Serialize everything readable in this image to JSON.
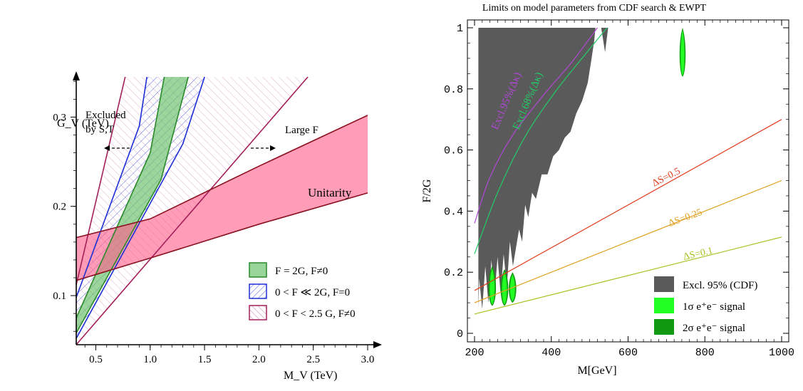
{
  "chart_data": [
    {
      "type": "area",
      "xlabel": "M_V (TeV)",
      "ylabel": "G_V (TeV)",
      "xlim": [
        0.32,
        3.0
      ],
      "ylim": [
        0.045,
        0.345
      ],
      "xticks": [
        "0.5",
        "1.0",
        "1.5",
        "2.0",
        "2.5",
        "3.0"
      ],
      "yticks": [
        "0.1",
        "0.2",
        "0.3"
      ],
      "annotations": {
        "excluded_1": "Excluded",
        "excluded_2": "by S,T",
        "large_fv": "Large F",
        "unitarity": "Unitarity"
      },
      "legend": [
        {
          "label": "F = 2G,  F≠0",
          "color": "#99d699"
        },
        {
          "label": "0 < F ≪ 2G,  F=0",
          "color": "#1f2fd6"
        },
        {
          "label": "0 < F <  2.5 G,  F≠0",
          "color": "#a3205a"
        }
      ],
      "bands": {
        "green": {
          "lower": [
            [
              0.32,
              0.058
            ],
            [
              1.1,
              0.23
            ],
            [
              1.35,
              0.345
            ]
          ],
          "upper": [
            [
              0.32,
              0.075
            ],
            [
              1.0,
              0.26
            ],
            [
              1.13,
              0.345
            ]
          ]
        },
        "blue": {
          "lower": [
            [
              0.32,
              0.052
            ],
            [
              1.3,
              0.27
            ],
            [
              1.5,
              0.345
            ]
          ],
          "upper": [
            [
              0.32,
              0.098
            ],
            [
              0.9,
              0.29
            ],
            [
              0.97,
              0.345
            ]
          ]
        },
        "hatch": {
          "lower": [
            [
              0.32,
              0.045
            ],
            [
              2.45,
              0.345
            ]
          ],
          "upper": [
            [
              0.32,
              0.112
            ],
            [
              0.77,
              0.345
            ]
          ]
        },
        "unitarity": {
          "lower": [
            [
              0.32,
              0.117
            ],
            [
              1.0,
              0.142
            ],
            [
              2.0,
              0.18
            ],
            [
              3.0,
              0.215
            ]
          ],
          "upper": [
            [
              0.32,
              0.165
            ],
            [
              1.0,
              0.186
            ],
            [
              2.0,
              0.245
            ],
            [
              3.0,
              0.302
            ]
          ]
        }
      }
    },
    {
      "type": "area",
      "title": "Limits on model parameters from CDF search & EWPT",
      "xlabel": "M[GeV]",
      "ylabel": "F/2G",
      "xlim": [
        190,
        1000
      ],
      "ylim": [
        0,
        1.0
      ],
      "xticks": [
        200,
        400,
        600,
        800,
        1000
      ],
      "yticks": [
        0,
        0.2,
        0.4,
        0.6,
        0.8,
        1
      ],
      "legend": [
        {
          "label": "Excl. 95% (CDF)",
          "color": "#5a5a5a"
        },
        {
          "label": "1σ e⁺e⁻ signal",
          "color": "#22ff22"
        },
        {
          "label": "2σ e⁺e⁻ signal",
          "color": "#129912"
        }
      ],
      "series": [
        {
          "name": "ΔS=0.5",
          "color": "#e03c1c",
          "x": [
            200,
            1000
          ],
          "y": [
            0.14,
            0.7
          ]
        },
        {
          "name": "ΔS=0.25",
          "color": "#e0a020",
          "x": [
            200,
            1000
          ],
          "y": [
            0.1,
            0.5
          ]
        },
        {
          "name": "ΔS=0.1",
          "color": "#a9c220",
          "x": [
            200,
            1000
          ],
          "y": [
            0.063,
            0.315
          ]
        },
        {
          "name": "Excl.95%(Δκ)",
          "color": "#b247d6",
          "x": [
            200,
            240,
            300,
            380,
            455,
            520
          ],
          "y": [
            0.36,
            0.51,
            0.65,
            0.78,
            0.89,
            1.0
          ]
        },
        {
          "name": "Excl.68%(Δκ)",
          "color": "#22cc66",
          "x": [
            200,
            260,
            330,
            410,
            480,
            545
          ],
          "y": [
            0.26,
            0.46,
            0.64,
            0.79,
            0.9,
            1.0
          ]
        }
      ],
      "cdf_region": {
        "x": [
          210,
          212,
          220,
          228,
          236,
          244,
          252,
          260,
          268,
          276,
          284,
          292,
          300,
          308,
          316,
          324,
          332,
          340,
          350,
          360,
          375,
          390,
          405,
          420,
          435,
          450,
          465,
          480,
          495,
          505,
          512,
          515
        ],
        "y": [
          0.08,
          0.18,
          0.08,
          0.22,
          0.1,
          0.24,
          0.12,
          0.25,
          0.13,
          0.26,
          0.15,
          0.3,
          0.22,
          0.28,
          0.34,
          0.3,
          0.42,
          0.38,
          0.46,
          0.44,
          0.52,
          0.52,
          0.58,
          0.6,
          0.64,
          0.66,
          0.72,
          0.76,
          0.82,
          0.9,
          0.96,
          1.0
        ]
      },
      "signal_spots": [
        {
          "x": 246,
          "ymin": 0.09,
          "ymax": 0.22
        },
        {
          "x": 278,
          "ymin": 0.09,
          "ymax": 0.21
        },
        {
          "x": 299,
          "ymin": 0.1,
          "ymax": 0.2
        },
        {
          "x": 742,
          "ymin": 0.84,
          "ymax": 1.0
        }
      ]
    }
  ]
}
